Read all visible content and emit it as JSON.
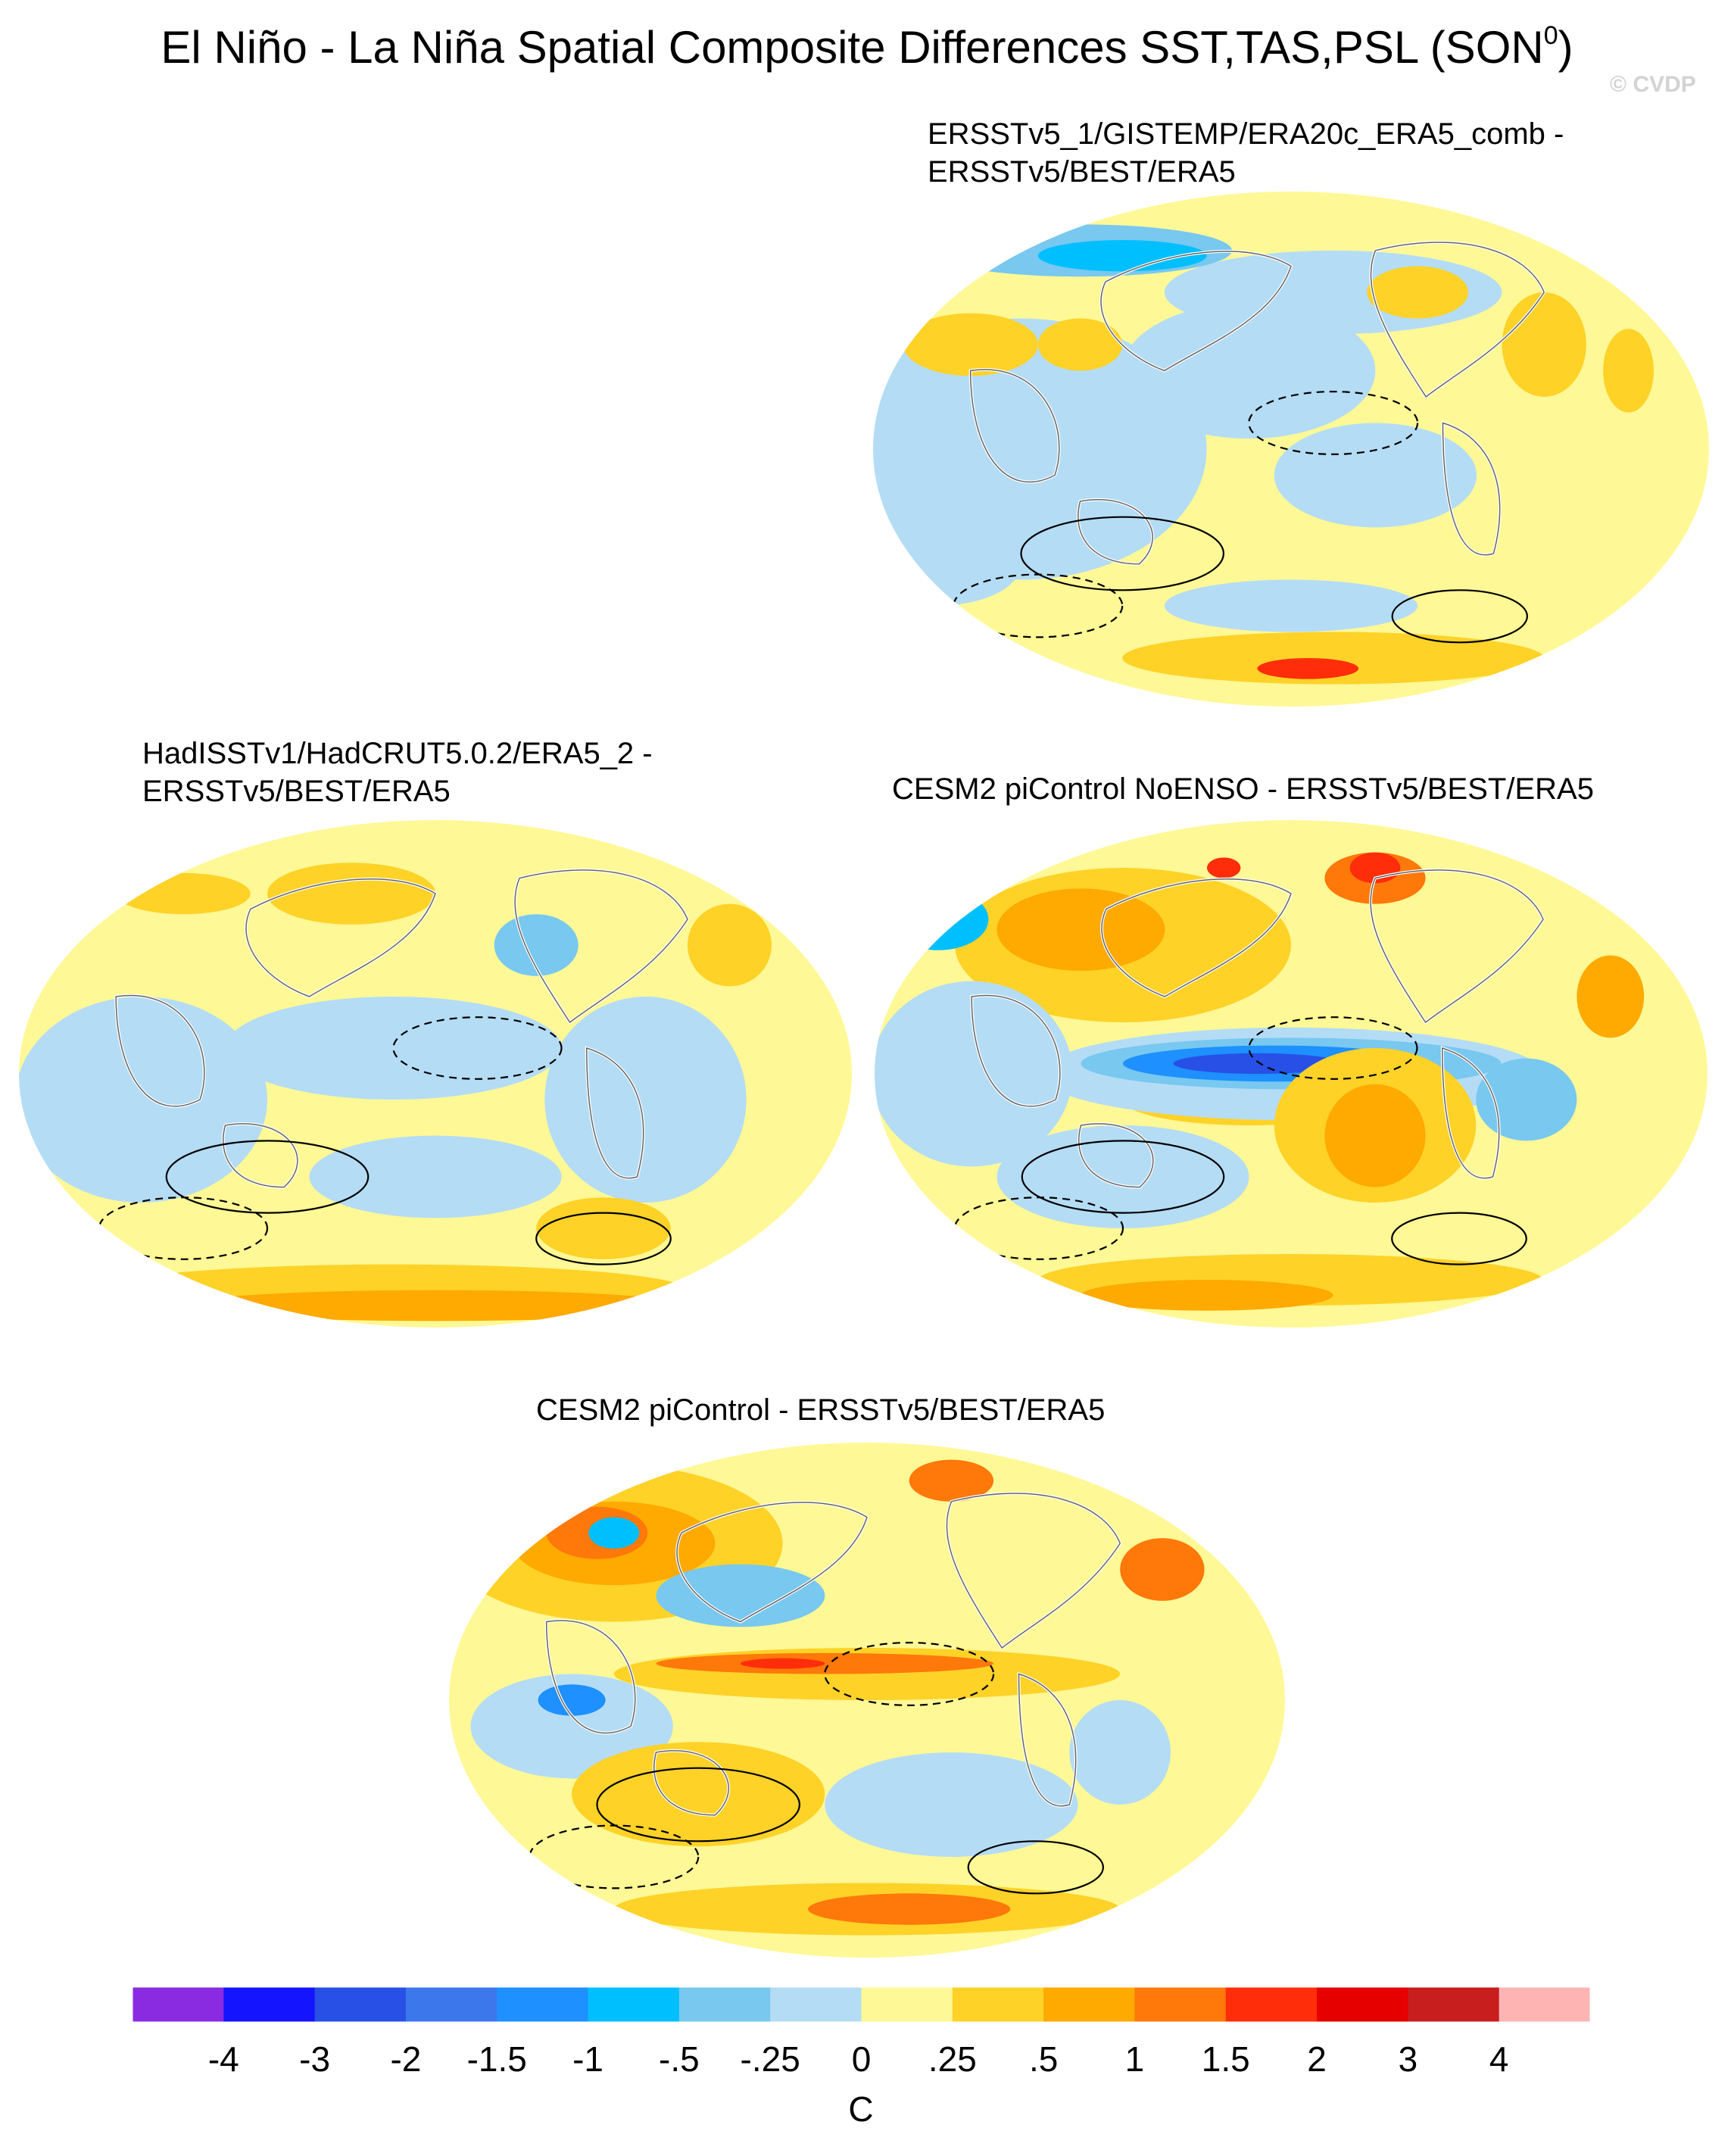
{
  "figure": {
    "title": "El Niño - La Niña Spatial Composite Differences SST,TAS,PSL (SON",
    "title_superscript": "0",
    "title_suffix": ")",
    "watermark": "© CVDP"
  },
  "panels": [
    {
      "id": "p1",
      "title_line1": "ERSSTv5_1/GISTEMP/ERA20c_ERA5_comb -",
      "title_line2": "ERSSTv5/BEST/ERA5"
    },
    {
      "id": "p2",
      "title_line1": "HadISSTv1/HadCRUT5.0.2/ERA5_2 -",
      "title_line2": "ERSSTv5/BEST/ERA5"
    },
    {
      "id": "p3",
      "title_line1": "CESM2 piControl NoENSO - ERSSTv5/BEST/ERA5",
      "title_line2": ""
    },
    {
      "id": "p4",
      "title_line1": "CESM2 piControl - ERSSTv5/BEST/ERA5",
      "title_line2": ""
    }
  ],
  "chart_data": {
    "type": "heatmap",
    "projection": "Winkel tripel (global maps, Pacific-centred)",
    "fields": [
      "SST",
      "TAS",
      "PSL"
    ],
    "season": "SON",
    "units": "C",
    "colorbar": {
      "levels": [
        "-4",
        "-3",
        "-2",
        "-1.5",
        "-1",
        "-.5",
        "-.25",
        "0",
        ".25",
        ".5",
        "1",
        "1.5",
        "2",
        "3",
        "4"
      ],
      "colors": [
        "#8a2be2",
        "#1414ff",
        "#2850e6",
        "#3c78eb",
        "#1e90ff",
        "#00bfff",
        "#78c8f0",
        "#b4dcf5",
        "#fff896",
        "#ffd228",
        "#ffaa00",
        "#ff780a",
        "#ff2d0a",
        "#e60000",
        "#c81e1e",
        "#ffb4b4"
      ]
    },
    "palette_map": {
      "dkblue": "#2850e6",
      "midblue": "#1e90ff",
      "blue": "#00bfff",
      "ltblue": "#78c8f0",
      "paleblue": "#b4dcf5",
      "yellow": "#fff896",
      "gold": "#ffd228",
      "orange": "#ffaa00",
      "dkorange": "#ff780a",
      "red": "#ff2d0a"
    },
    "panel_patterns": {
      "p1": [
        [
          "#fff896",
          0.5,
          0.5,
          0.55,
          0.5
        ],
        [
          "#b4dcf5",
          0.18,
          0.5,
          0.22,
          0.25
        ],
        [
          "#b4dcf5",
          0.45,
          0.35,
          0.15,
          0.13
        ],
        [
          "#b4dcf5",
          0.6,
          0.55,
          0.12,
          0.1
        ],
        [
          "#b4dcf5",
          0.08,
          0.72,
          0.1,
          0.08
        ],
        [
          "#b4dcf5",
          0.55,
          0.2,
          0.2,
          0.08
        ],
        [
          "#78c8f0",
          0.25,
          0.12,
          0.18,
          0.05
        ],
        [
          "#00bfff",
          0.3,
          0.13,
          0.1,
          0.03
        ],
        [
          "#ffd228",
          0.12,
          0.3,
          0.08,
          0.06
        ],
        [
          "#ffd228",
          0.65,
          0.2,
          0.06,
          0.05
        ],
        [
          "#ffd228",
          0.8,
          0.3,
          0.05,
          0.1
        ],
        [
          "#ffd228",
          0.9,
          0.35,
          0.03,
          0.08
        ],
        [
          "#ffd228",
          0.55,
          0.9,
          0.25,
          0.05
        ],
        [
          "#b4dcf5",
          0.5,
          0.8,
          0.15,
          0.05
        ],
        [
          "#ff2d0a",
          0.52,
          0.92,
          0.06,
          0.02
        ],
        [
          "#ffd228",
          0.25,
          0.3,
          0.05,
          0.05
        ]
      ],
      "p2": [
        [
          "#fff896",
          0.5,
          0.5,
          0.55,
          0.5
        ],
        [
          "#b4dcf5",
          0.15,
          0.55,
          0.15,
          0.2
        ],
        [
          "#b4dcf5",
          0.45,
          0.45,
          0.2,
          0.1
        ],
        [
          "#b4dcf5",
          0.75,
          0.55,
          0.12,
          0.2
        ],
        [
          "#b4dcf5",
          0.5,
          0.7,
          0.15,
          0.08
        ],
        [
          "#ffd228",
          0.4,
          0.15,
          0.1,
          0.06
        ],
        [
          "#ffd228",
          0.2,
          0.15,
          0.08,
          0.04
        ],
        [
          "#ffd228",
          0.85,
          0.25,
          0.05,
          0.08
        ],
        [
          "#ffd228",
          0.45,
          0.92,
          0.35,
          0.05
        ],
        [
          "#ffaa00",
          0.5,
          0.95,
          0.3,
          0.03
        ],
        [
          "#78c8f0",
          0.62,
          0.25,
          0.05,
          0.06
        ],
        [
          "#ffd228",
          0.7,
          0.8,
          0.08,
          0.06
        ]
      ],
      "p3": [
        [
          "#fff896",
          0.5,
          0.5,
          0.55,
          0.5
        ],
        [
          "#ffd228",
          0.3,
          0.25,
          0.2,
          0.15
        ],
        [
          "#ffaa00",
          0.25,
          0.22,
          0.1,
          0.08
        ],
        [
          "#ffd228",
          0.45,
          0.55,
          0.15,
          0.05
        ],
        [
          "#b4dcf5",
          0.5,
          0.5,
          0.3,
          0.09
        ],
        [
          "#78c8f0",
          0.5,
          0.48,
          0.25,
          0.05
        ],
        [
          "#1e90ff",
          0.48,
          0.48,
          0.18,
          0.035
        ],
        [
          "#2850e6",
          0.46,
          0.48,
          0.1,
          0.02
        ],
        [
          "#b4dcf5",
          0.12,
          0.5,
          0.12,
          0.18
        ],
        [
          "#ffd228",
          0.6,
          0.6,
          0.12,
          0.15
        ],
        [
          "#ffaa00",
          0.6,
          0.62,
          0.06,
          0.1
        ],
        [
          "#b4dcf5",
          0.3,
          0.7,
          0.15,
          0.1
        ],
        [
          "#ffd228",
          0.5,
          0.9,
          0.3,
          0.05
        ],
        [
          "#ffaa00",
          0.4,
          0.93,
          0.15,
          0.03
        ],
        [
          "#ff780a",
          0.6,
          0.12,
          0.06,
          0.05
        ],
        [
          "#ff2d0a",
          0.42,
          0.1,
          0.02,
          0.02
        ],
        [
          "#ff2d0a",
          0.6,
          0.1,
          0.03,
          0.03
        ],
        [
          "#00bfff",
          0.08,
          0.2,
          0.06,
          0.06
        ],
        [
          "#ffaa00",
          0.88,
          0.35,
          0.04,
          0.08
        ],
        [
          "#78c8f0",
          0.78,
          0.55,
          0.06,
          0.08
        ]
      ],
      "p4": [
        [
          "#fff896",
          0.5,
          0.5,
          0.55,
          0.5
        ],
        [
          "#ffd228",
          0.2,
          0.2,
          0.2,
          0.15
        ],
        [
          "#ffaa00",
          0.2,
          0.2,
          0.12,
          0.08
        ],
        [
          "#ff780a",
          0.18,
          0.18,
          0.06,
          0.05
        ],
        [
          "#00bfff",
          0.2,
          0.18,
          0.03,
          0.03
        ],
        [
          "#ffd228",
          0.5,
          0.45,
          0.3,
          0.05
        ],
        [
          "#ff780a",
          0.45,
          0.43,
          0.2,
          0.02
        ],
        [
          "#ff2d0a",
          0.4,
          0.43,
          0.05,
          0.01
        ],
        [
          "#b4dcf5",
          0.15,
          0.55,
          0.12,
          0.1
        ],
        [
          "#1e90ff",
          0.15,
          0.5,
          0.04,
          0.03
        ],
        [
          "#78c8f0",
          0.35,
          0.3,
          0.1,
          0.06
        ],
        [
          "#ffd228",
          0.3,
          0.68,
          0.15,
          0.1
        ],
        [
          "#b4dcf5",
          0.6,
          0.7,
          0.15,
          0.1
        ],
        [
          "#ffd228",
          0.5,
          0.9,
          0.3,
          0.05
        ],
        [
          "#ff780a",
          0.55,
          0.9,
          0.12,
          0.03
        ],
        [
          "#ff780a",
          0.6,
          0.08,
          0.05,
          0.04
        ],
        [
          "#ff780a",
          0.85,
          0.25,
          0.05,
          0.06
        ],
        [
          "#b4dcf5",
          0.8,
          0.6,
          0.06,
          0.1
        ]
      ]
    }
  }
}
